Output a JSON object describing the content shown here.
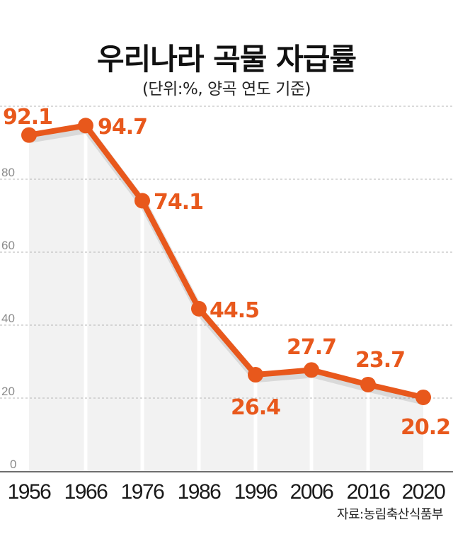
{
  "header": {
    "title": "우리나라 곡물 자급률",
    "subtitle": "(단위:%, 양곡 연도 기준)"
  },
  "footer": {
    "source": "자료:농림축산식품부"
  },
  "colors": {
    "line": "#E8581C",
    "label": "#E8581C",
    "fill": "#F2F2F2",
    "grid": "#B5B5B5",
    "axis": "#6E6E6E"
  },
  "chart_data": {
    "type": "line",
    "title": "우리나라 곡물 자급률",
    "subtitle": "(단위:%, 양곡 연도 기준)",
    "xlabel": "",
    "ylabel": "%",
    "categories": [
      "1956",
      "1966",
      "1976",
      "1986",
      "1996",
      "2006",
      "2016",
      "2020"
    ],
    "values": [
      92.1,
      94.7,
      74.1,
      44.5,
      26.4,
      27.7,
      23.7,
      20.2
    ],
    "data_labels": [
      "92.1",
      "94.7",
      "74.1",
      "44.5",
      "26.4",
      "27.7",
      "23.7",
      "20.2"
    ],
    "yticks": [
      0,
      20,
      40,
      60,
      80
    ],
    "ylim": [
      0,
      100
    ],
    "grid": true,
    "grid_style": "dashed horizontal",
    "legend": null,
    "source": "자료:농림축산식품부"
  }
}
